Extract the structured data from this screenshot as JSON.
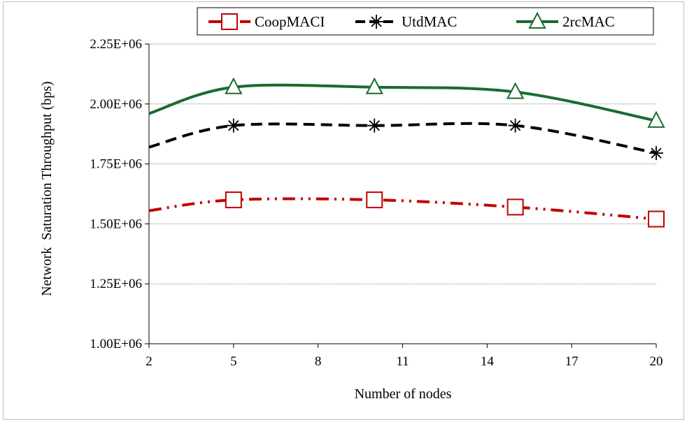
{
  "chart_data": {
    "type": "line",
    "x": [
      2,
      5,
      10,
      15,
      20
    ],
    "xticks": [
      "2",
      "5",
      "8",
      "11",
      "14",
      "17",
      "20"
    ],
    "yticks": [
      "1.00E+06",
      "1.25E+06",
      "1.50E+06",
      "1.75E+06",
      "2.00E+06",
      "2.25E+06"
    ],
    "xlim": [
      2,
      20
    ],
    "ylim": [
      1000000,
      2250000
    ],
    "xlabel": "Number of nodes",
    "ylabel": "Network  Saturation Throughput (bps)",
    "grid": "horizontal",
    "legend_position": "top",
    "series": [
      {
        "name": "CoopMACI",
        "color": "#c00000",
        "marker": "square",
        "dash": "long-dash-dot-dot",
        "values": [
          1555000,
          1600000,
          1600000,
          1570000,
          1520000
        ],
        "marked": [
          false,
          true,
          true,
          true,
          true
        ]
      },
      {
        "name": "UtdMAC",
        "color": "#000000",
        "marker": "star",
        "dash": "dash",
        "values": [
          1820000,
          1910000,
          1910000,
          1910000,
          1795000
        ],
        "marked": [
          false,
          true,
          true,
          true,
          true
        ]
      },
      {
        "name": "2rcMAC",
        "color": "#1a6b30",
        "marker": "triangle",
        "dash": "solid",
        "values": [
          1960000,
          2070000,
          2070000,
          2050000,
          1930000
        ],
        "marked": [
          false,
          true,
          true,
          true,
          true
        ]
      }
    ]
  }
}
